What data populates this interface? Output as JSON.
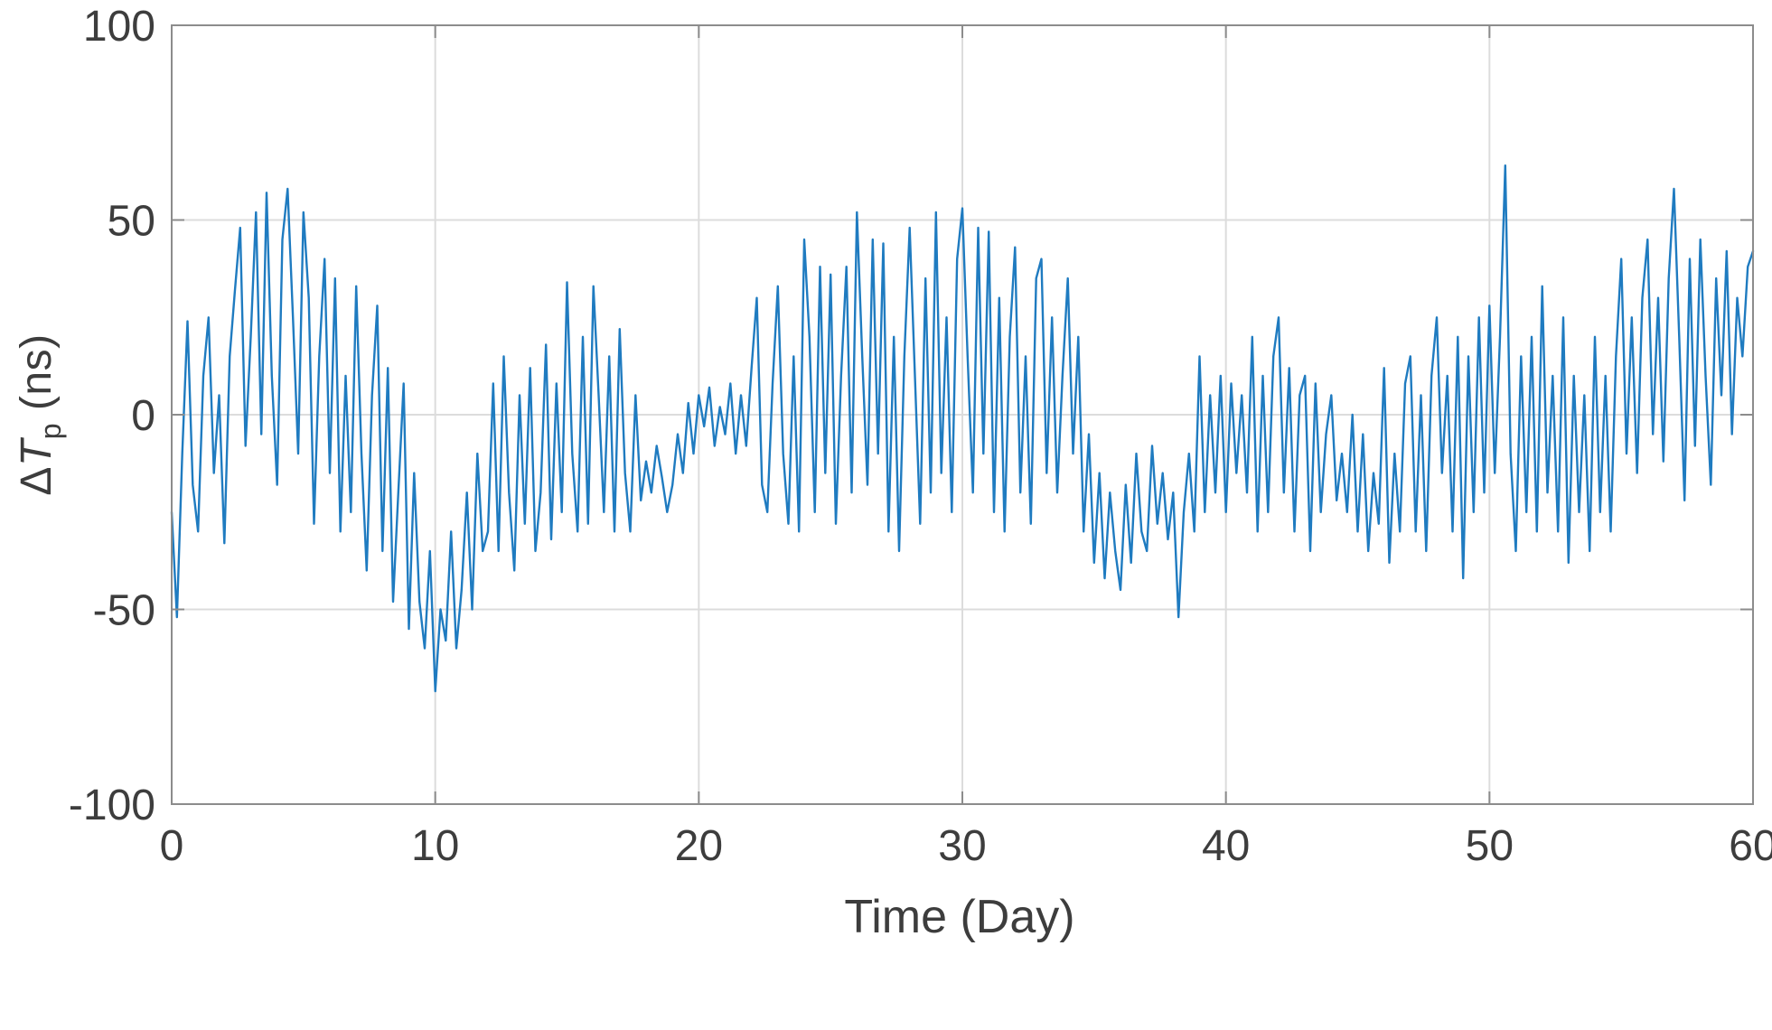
{
  "chart_data": {
    "type": "line",
    "title": "",
    "xlabel": "Time (Day)",
    "ylabel": "ΔTₚ (ns)",
    "ylabel_parts": {
      "prefix": "Δ",
      "symbol": "T",
      "subscript": "p",
      "suffix": " (ns)"
    },
    "xlim": [
      0,
      60
    ],
    "ylim": [
      -100,
      100
    ],
    "xticks": [
      0,
      10,
      20,
      30,
      40,
      50,
      60
    ],
    "yticks": [
      -100,
      -50,
      0,
      50,
      100
    ],
    "grid": true,
    "legend_position": "none",
    "line_color": "#1f7bc0",
    "grid_color": "#dcdcdc",
    "axis_color": "#8c8c8c",
    "text_color": "#3d3d3d",
    "x_start": 0,
    "x_step": 0.2,
    "x_end": 60,
    "values": [
      -25,
      -52,
      -10,
      24,
      -18,
      -30,
      10,
      25,
      -15,
      5,
      -33,
      15,
      32,
      48,
      -8,
      20,
      52,
      -5,
      57,
      10,
      -18,
      45,
      58,
      25,
      -10,
      52,
      30,
      -28,
      15,
      40,
      -15,
      35,
      -30,
      10,
      -25,
      33,
      -10,
      -40,
      5,
      28,
      -35,
      12,
      -48,
      -20,
      8,
      -55,
      -15,
      -48,
      -60,
      -35,
      -71,
      -50,
      -58,
      -30,
      -60,
      -45,
      -20,
      -50,
      -10,
      -35,
      -30,
      8,
      -35,
      15,
      -20,
      -40,
      5,
      -28,
      12,
      -35,
      -20,
      18,
      -32,
      8,
      -25,
      34,
      -10,
      -30,
      20,
      -28,
      33,
      5,
      -25,
      15,
      -30,
      22,
      -15,
      -30,
      5,
      -22,
      -12,
      -20,
      -8,
      -16,
      -25,
      -18,
      -5,
      -15,
      3,
      -10,
      5,
      -3,
      7,
      -8,
      2,
      -5,
      8,
      -10,
      5,
      -8,
      12,
      30,
      -18,
      -25,
      8,
      33,
      -10,
      -28,
      15,
      -30,
      45,
      20,
      -25,
      38,
      -15,
      36,
      -28,
      10,
      38,
      -20,
      52,
      15,
      -18,
      45,
      -10,
      44,
      -30,
      20,
      -35,
      15,
      48,
      10,
      -28,
      35,
      -20,
      52,
      -15,
      25,
      -25,
      40,
      53,
      15,
      -20,
      48,
      -10,
      47,
      -25,
      30,
      -30,
      20,
      43,
      -20,
      15,
      -28,
      35,
      40,
      -15,
      25,
      -20,
      10,
      35,
      -10,
      20,
      -30,
      -5,
      -38,
      -15,
      -42,
      -20,
      -35,
      -45,
      -18,
      -38,
      -10,
      -30,
      -35,
      -8,
      -28,
      -15,
      -32,
      -20,
      -52,
      -25,
      -10,
      -30,
      15,
      -25,
      5,
      -20,
      10,
      -25,
      8,
      -15,
      5,
      -20,
      20,
      -30,
      10,
      -25,
      15,
      25,
      -20,
      12,
      -30,
      5,
      10,
      -35,
      8,
      -25,
      -5,
      5,
      -22,
      -10,
      -25,
      0,
      -30,
      -5,
      -35,
      -15,
      -28,
      12,
      -38,
      -10,
      -30,
      8,
      15,
      -30,
      5,
      -35,
      10,
      25,
      -15,
      10,
      -30,
      20,
      -42,
      15,
      -25,
      25,
      -20,
      28,
      -15,
      20,
      64,
      -10,
      -35,
      15,
      -25,
      20,
      -30,
      33,
      -20,
      10,
      -30,
      25,
      -38,
      10,
      -25,
      5,
      -35,
      20,
      -25,
      10,
      -30,
      15,
      40,
      -10,
      25,
      -15,
      30,
      45,
      -5,
      30,
      -12,
      35,
      58,
      20,
      -22,
      40,
      -8,
      45,
      10,
      -18,
      35,
      5,
      42,
      -5,
      30,
      15,
      38,
      42
    ]
  }
}
